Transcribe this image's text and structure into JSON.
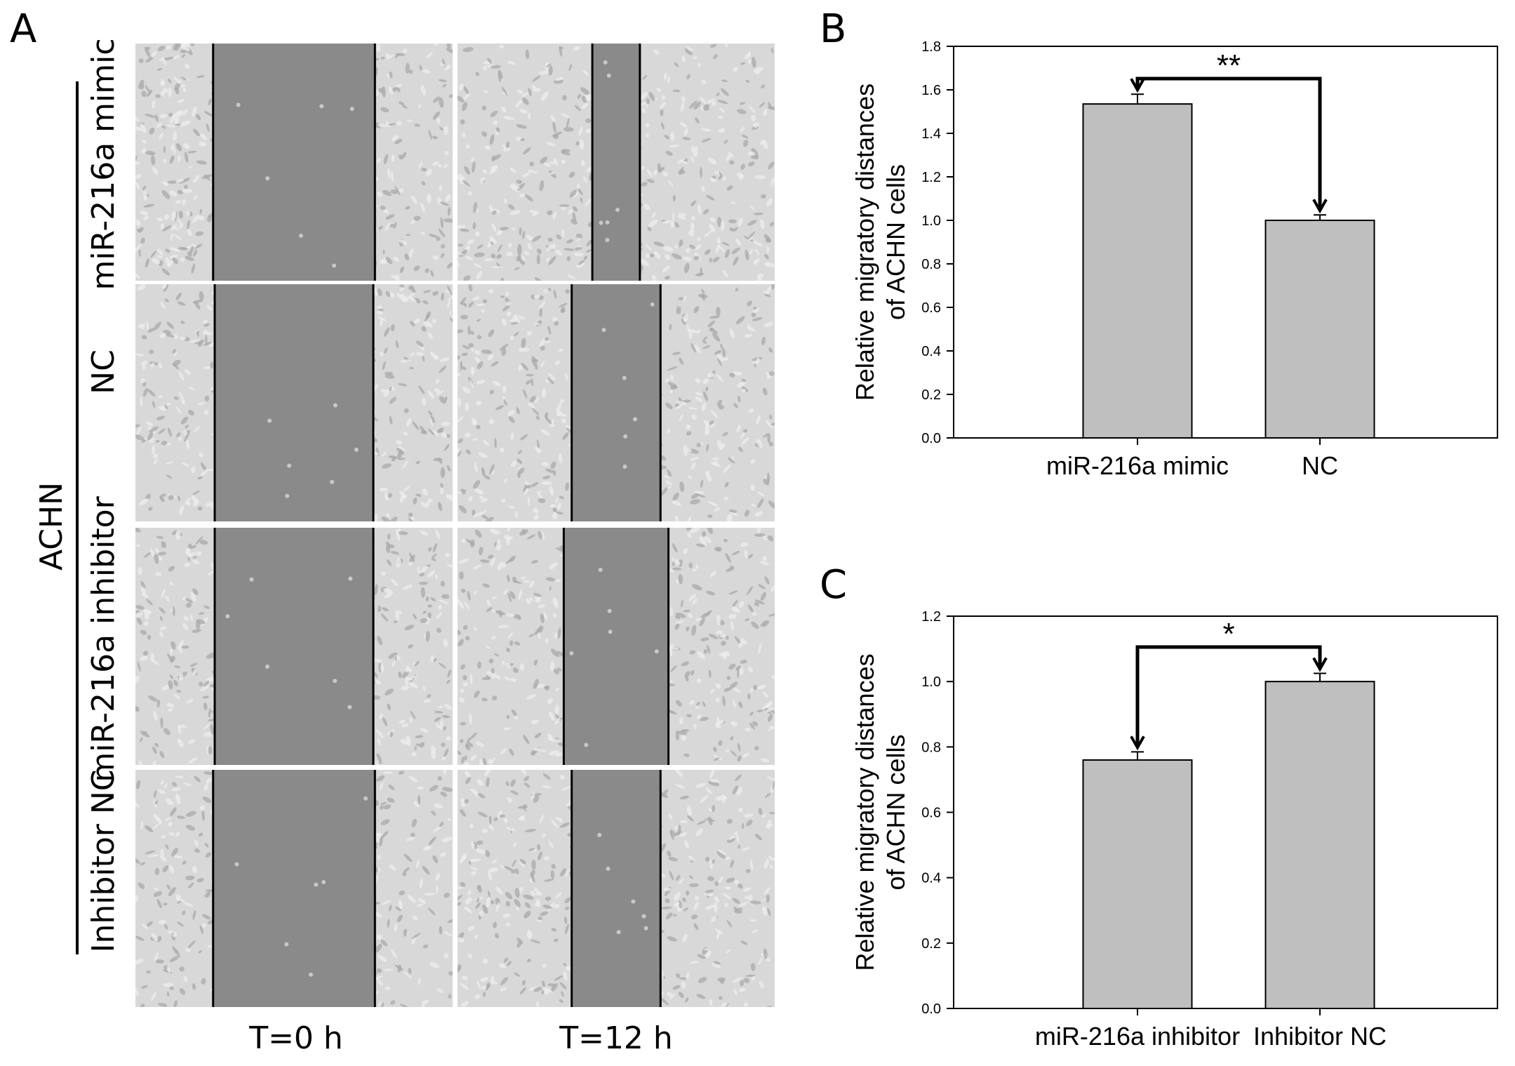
{
  "panel_a": {
    "letter": "A",
    "cell_line_label": "ACHN",
    "row_labels": [
      "miR-216a mimic",
      "NC",
      "miR-216a inhibitor",
      "Inhibitor NC"
    ],
    "column_labels": [
      "T=0 h",
      "T=12 h"
    ],
    "wound_images": [
      {
        "row": "miR-216a mimic",
        "time": "T=0 h",
        "gap_fraction": 0.51
      },
      {
        "row": "miR-216a mimic",
        "time": "T=12 h",
        "gap_fraction": 0.15
      },
      {
        "row": "NC",
        "time": "T=0 h",
        "gap_fraction": 0.5
      },
      {
        "row": "NC",
        "time": "T=12 h",
        "gap_fraction": 0.28
      },
      {
        "row": "miR-216a inhibitor",
        "time": "T=0 h",
        "gap_fraction": 0.5
      },
      {
        "row": "miR-216a inhibitor",
        "time": "T=12 h",
        "gap_fraction": 0.33
      },
      {
        "row": "Inhibitor NC",
        "time": "T=0 h",
        "gap_fraction": 0.51
      },
      {
        "row": "Inhibitor NC",
        "time": "T=12 h",
        "gap_fraction": 0.28
      }
    ],
    "colors": {
      "cell_background": "#d8d8d8",
      "wound_fill": "#8a8a8a",
      "wound_edge": "#000000"
    }
  },
  "panel_b": {
    "letter": "B",
    "chart_data": {
      "type": "bar",
      "categories": [
        "miR-216a mimic",
        "NC"
      ],
      "values": [
        1.535,
        1.0
      ],
      "errors": [
        0.045,
        0.025
      ],
      "ylabel_line1": "Relative migratory distances",
      "ylabel_line2": "of ACHN cells",
      "ylim": [
        0,
        1.8
      ],
      "yticks": [
        "0.0",
        "0.2",
        "0.4",
        "0.6",
        "0.8",
        "1.0",
        "1.2",
        "1.4",
        "1.6",
        "1.8"
      ],
      "significance": "**",
      "bar_color": "#bfbfbf",
      "grid": false
    }
  },
  "panel_c": {
    "letter": "C",
    "chart_data": {
      "type": "bar",
      "categories": [
        "miR-216a inhibitor",
        "Inhibitor NC"
      ],
      "values": [
        0.76,
        1.0
      ],
      "errors": [
        0.025,
        0.025
      ],
      "ylabel_line1": "Relative migratory distances",
      "ylabel_line2": "of ACHN cells",
      "ylim": [
        0,
        1.2
      ],
      "yticks": [
        "0.0",
        "0.2",
        "0.4",
        "0.6",
        "0.8",
        "1.0",
        "1.2"
      ],
      "significance": "*",
      "bar_color": "#bfbfbf",
      "grid": false
    }
  }
}
